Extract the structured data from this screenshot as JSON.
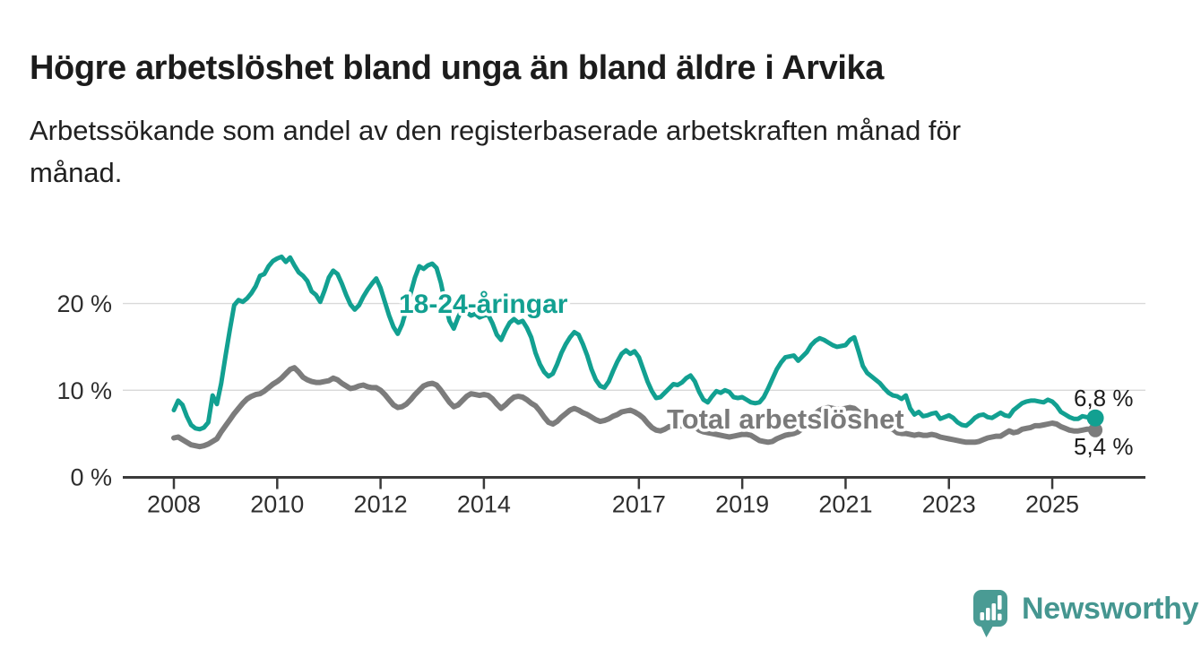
{
  "header": {
    "title": "Högre arbetslöshet bland unga än bland äldre i Arvika",
    "subtitle_lines": [
      "Arbetssökande som andel av den registerbaserade arbetskraften månad för",
      "månad."
    ]
  },
  "footer": {
    "brand": "Newsworthy",
    "logo_icon": "speech-bubble-bar-chart-icon"
  },
  "colors": {
    "youth_line": "#12a091",
    "total_line": "#7c7c7c",
    "total_label": "#7a7a7a",
    "axis": "#3a3a3a",
    "grid": "#d9d9d9",
    "tick_text": "#2e2e2e",
    "annotation_text": "#1c1c1c",
    "brand_teal": "#459690",
    "background": "#ffffff"
  },
  "chart_data": {
    "type": "line",
    "title": "Högre arbetslöshet bland unga än bland äldre i Arvika",
    "xlabel": "",
    "ylabel": "Arbetssökande som andel av den registerbaserade arbetskraften (%)",
    "x_unit": "month",
    "x_start_year": 2008.0,
    "x_step_months": 1,
    "x_end_year": 2025.833,
    "x_tick_years": [
      2008,
      2010,
      2012,
      2014,
      2017,
      2019,
      2021,
      2023,
      2025
    ],
    "y_ticks": [
      {
        "value": 0,
        "label": "0 %"
      },
      {
        "value": 10,
        "label": "10 %"
      },
      {
        "value": 20,
        "label": "20 %"
      }
    ],
    "ylim": [
      0,
      27.5
    ],
    "grid": "horizontal-only",
    "legend_position": "inline-labels",
    "series": [
      {
        "name": "18-24-åringar",
        "color": "#12a091",
        "end_label": "6,8 %",
        "end_value": 6.8,
        "values": [
          7.7,
          8.8,
          8.3,
          7.0,
          6.0,
          5.6,
          5.5,
          5.7,
          6.3,
          9.4,
          8.4,
          10.8,
          14.0,
          17.0,
          19.8,
          20.4,
          20.2,
          20.6,
          21.2,
          22.0,
          23.2,
          23.4,
          24.3,
          24.9,
          25.2,
          25.4,
          24.8,
          25.3,
          24.4,
          23.6,
          23.2,
          22.6,
          21.4,
          21.0,
          20.2,
          21.5,
          23.0,
          23.8,
          23.4,
          22.3,
          21.0,
          19.9,
          19.3,
          19.8,
          20.8,
          21.6,
          22.3,
          22.9,
          21.8,
          20.2,
          18.6,
          17.3,
          16.5,
          17.6,
          19.3,
          21.2,
          23.0,
          24.3,
          24.0,
          24.4,
          24.6,
          24.1,
          22.4,
          20.0,
          18.0,
          17.1,
          18.4,
          19.4,
          19.0,
          18.6,
          18.8,
          18.4,
          18.6,
          18.7,
          17.7,
          16.4,
          15.8,
          16.9,
          17.8,
          18.2,
          17.8,
          18.0,
          17.2,
          16.1,
          14.3,
          13.0,
          12.1,
          11.6,
          11.9,
          13.0,
          14.3,
          15.3,
          16.1,
          16.7,
          16.4,
          15.3,
          14.0,
          12.4,
          11.2,
          10.5,
          10.3,
          11.0,
          12.2,
          13.3,
          14.2,
          14.6,
          14.2,
          14.5,
          13.8,
          12.4,
          11.0,
          9.9,
          9.1,
          9.2,
          9.7,
          10.2,
          10.7,
          10.6,
          10.9,
          11.4,
          11.7,
          11.0,
          9.8,
          8.9,
          8.6,
          9.3,
          9.9,
          9.7,
          10.0,
          9.8,
          9.2,
          9.1,
          9.2,
          8.9,
          8.6,
          8.5,
          8.6,
          9.2,
          10.2,
          11.3,
          12.4,
          13.2,
          13.8,
          13.9,
          14.0,
          13.4,
          13.9,
          14.4,
          15.2,
          15.7,
          16.0,
          15.8,
          15.5,
          15.2,
          15.0,
          15.1,
          15.2,
          15.8,
          16.1,
          14.5,
          12.8,
          12.0,
          11.6,
          11.2,
          10.8,
          10.2,
          9.7,
          9.4,
          9.3,
          9.0,
          9.4,
          7.9,
          7.2,
          7.5,
          7.0,
          7.1,
          7.3,
          7.4,
          6.7,
          6.9,
          7.1,
          6.8,
          6.3,
          6.0,
          5.9,
          6.3,
          6.8,
          7.1,
          7.2,
          6.9,
          6.8,
          7.1,
          7.4,
          7.1,
          7.0,
          7.7,
          8.1,
          8.5,
          8.7,
          8.8,
          8.8,
          8.7,
          8.6,
          8.9,
          8.7,
          8.2,
          7.5,
          7.2,
          6.9,
          6.7,
          6.7,
          7.0,
          6.9,
          6.8,
          6.8
        ]
      },
      {
        "name": "Total arbetslöshet",
        "color": "#7c7c7c",
        "end_label": "5,4 %",
        "end_value": 5.4,
        "values": [
          4.5,
          4.6,
          4.3,
          4.0,
          3.7,
          3.6,
          3.5,
          3.6,
          3.8,
          4.1,
          4.4,
          5.2,
          5.9,
          6.6,
          7.3,
          7.9,
          8.5,
          9.0,
          9.3,
          9.5,
          9.6,
          9.9,
          10.3,
          10.7,
          11.0,
          11.4,
          11.9,
          12.4,
          12.6,
          12.1,
          11.5,
          11.2,
          11.0,
          10.9,
          10.9,
          11.0,
          11.1,
          11.4,
          11.2,
          10.8,
          10.5,
          10.2,
          10.3,
          10.5,
          10.6,
          10.4,
          10.3,
          10.3,
          10.0,
          9.5,
          8.9,
          8.3,
          8.0,
          8.1,
          8.4,
          8.9,
          9.5,
          10.0,
          10.5,
          10.7,
          10.8,
          10.6,
          10.0,
          9.3,
          8.6,
          8.1,
          8.3,
          8.8,
          9.3,
          9.6,
          9.5,
          9.4,
          9.5,
          9.4,
          9.0,
          8.4,
          7.9,
          8.3,
          8.8,
          9.2,
          9.3,
          9.2,
          8.9,
          8.5,
          8.2,
          7.6,
          6.9,
          6.3,
          6.1,
          6.4,
          6.9,
          7.3,
          7.7,
          7.9,
          7.7,
          7.4,
          7.2,
          6.9,
          6.6,
          6.4,
          6.5,
          6.7,
          7.0,
          7.2,
          7.5,
          7.6,
          7.7,
          7.5,
          7.2,
          6.8,
          6.2,
          5.7,
          5.4,
          5.3,
          5.5,
          5.8,
          5.7,
          5.8,
          5.9,
          6.0,
          6.0,
          5.8,
          5.4,
          5.2,
          5.1,
          5.0,
          4.9,
          4.8,
          4.7,
          4.6,
          4.7,
          4.8,
          4.9,
          4.9,
          4.8,
          4.5,
          4.2,
          4.1,
          4.0,
          4.1,
          4.4,
          4.6,
          4.8,
          4.9,
          5.0,
          5.2,
          5.6,
          6.2,
          6.8,
          7.3,
          7.7,
          7.9,
          8.0,
          7.9,
          7.8,
          7.8,
          7.9,
          8.0,
          7.9,
          7.5,
          7.0,
          6.6,
          6.3,
          6.2,
          6.0,
          5.8,
          5.6,
          5.5,
          5.1,
          5.0,
          5.0,
          4.9,
          4.8,
          4.9,
          4.8,
          4.8,
          4.9,
          4.8,
          4.6,
          4.5,
          4.4,
          4.3,
          4.2,
          4.1,
          4.0,
          4.0,
          4.0,
          4.1,
          4.3,
          4.5,
          4.6,
          4.7,
          4.7,
          5.0,
          5.3,
          5.1,
          5.2,
          5.5,
          5.6,
          5.7,
          5.9,
          5.9,
          6.0,
          6.1,
          6.2,
          6.1,
          5.8,
          5.6,
          5.4,
          5.3,
          5.3,
          5.4,
          5.5,
          5.5,
          5.4
        ]
      }
    ]
  }
}
